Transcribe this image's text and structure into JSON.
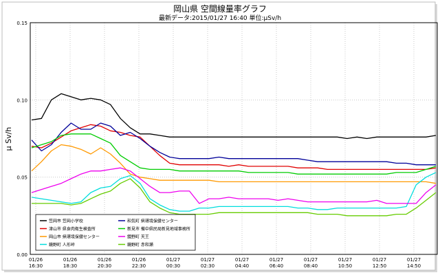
{
  "chart_data": {
    "type": "line",
    "title": "岡山県 空間線量率グラフ",
    "subtitle": "最新データ:2015/01/27 16:40 単位:μSv/h",
    "ylabel": "μ Sv/h",
    "xlabel": "",
    "ylim": [
      0,
      0.15
    ],
    "yticks": [
      "0.00",
      "0.05",
      "0.10",
      "0.15"
    ],
    "xticks": [
      {
        "date": "01/26",
        "time": "16:30"
      },
      {
        "date": "01/26",
        "time": "18:30"
      },
      {
        "date": "01/26",
        "time": "20:30"
      },
      {
        "date": "01/26",
        "time": "22:30"
      },
      {
        "date": "01/27",
        "time": "00:30"
      },
      {
        "date": "01/27",
        "time": "02:30"
      },
      {
        "date": "01/27",
        "time": "04:40"
      },
      {
        "date": "01/27",
        "time": "06:40"
      },
      {
        "date": "01/27",
        "time": "08:40"
      },
      {
        "date": "01/27",
        "time": "10:50"
      },
      {
        "date": "01/27",
        "time": "12:50"
      },
      {
        "date": "01/27",
        "time": "14:50"
      }
    ],
    "grid": true,
    "legend_position": "bottom-left",
    "series": [
      {
        "name": "笠岡市 笠岡小学校",
        "color": "#000000",
        "values": [
          0.087,
          0.088,
          0.1,
          0.104,
          0.102,
          0.1,
          0.101,
          0.1,
          0.097,
          0.088,
          0.082,
          0.078,
          0.078,
          0.077,
          0.076,
          0.076,
          0.076,
          0.076,
          0.076,
          0.076,
          0.076,
          0.076,
          0.076,
          0.076,
          0.076,
          0.076,
          0.076,
          0.076,
          0.076,
          0.076,
          0.076,
          0.076,
          0.075,
          0.076,
          0.075,
          0.076,
          0.076,
          0.076,
          0.076,
          0.076,
          0.076,
          0.077
        ]
      },
      {
        "name": "津山市 県食肉衛生検査所",
        "color": "#e00000",
        "values": [
          0.07,
          0.069,
          0.072,
          0.076,
          0.08,
          0.082,
          0.084,
          0.083,
          0.08,
          0.079,
          0.077,
          0.076,
          0.07,
          0.064,
          0.059,
          0.058,
          0.058,
          0.058,
          0.058,
          0.058,
          0.057,
          0.058,
          0.057,
          0.057,
          0.057,
          0.057,
          0.057,
          0.056,
          0.056,
          0.056,
          0.055,
          0.055,
          0.055,
          0.055,
          0.055,
          0.055,
          0.055,
          0.055,
          0.055,
          0.055,
          0.055,
          0.056
        ]
      },
      {
        "name": "岡山市 県環境保健センター",
        "color": "#ff9900",
        "values": [
          0.054,
          0.06,
          0.067,
          0.071,
          0.07,
          0.068,
          0.065,
          0.069,
          0.065,
          0.059,
          0.052,
          0.05,
          0.049,
          0.048,
          0.048,
          0.048,
          0.048,
          0.048,
          0.048,
          0.047,
          0.047,
          0.047,
          0.047,
          0.047,
          0.047,
          0.047,
          0.047,
          0.047,
          0.047,
          0.047,
          0.047,
          0.047,
          0.047,
          0.047,
          0.047,
          0.047,
          0.047,
          0.047,
          0.047,
          0.047,
          0.047,
          0.046
        ]
      },
      {
        "name": "鏡野町 人形峠",
        "color": "#00dddd",
        "values": [
          0.037,
          0.036,
          0.035,
          0.034,
          0.033,
          0.034,
          0.04,
          0.043,
          0.044,
          0.049,
          0.051,
          0.046,
          0.036,
          0.032,
          0.029,
          0.028,
          0.028,
          0.03,
          0.03,
          0.031,
          0.031,
          0.031,
          0.031,
          0.031,
          0.031,
          0.031,
          0.031,
          0.03,
          0.03,
          0.029,
          0.029,
          0.03,
          0.03,
          0.03,
          0.03,
          0.03,
          0.03,
          0.03,
          0.031,
          0.045,
          0.05,
          0.053
        ]
      },
      {
        "name": "和気町 県環境保健センター",
        "color": "#000099",
        "values": [
          0.074,
          0.067,
          0.071,
          0.079,
          0.085,
          0.081,
          0.081,
          0.085,
          0.083,
          0.077,
          0.079,
          0.075,
          0.07,
          0.066,
          0.063,
          0.062,
          0.062,
          0.062,
          0.062,
          0.063,
          0.062,
          0.062,
          0.062,
          0.062,
          0.062,
          0.062,
          0.062,
          0.062,
          0.061,
          0.06,
          0.06,
          0.06,
          0.06,
          0.06,
          0.06,
          0.06,
          0.06,
          0.059,
          0.059,
          0.058,
          0.058,
          0.058
        ]
      },
      {
        "name": "新見市 備中県民局新見地域事務所",
        "color": "#00cc00",
        "values": [
          0.069,
          0.071,
          0.073,
          0.077,
          0.078,
          0.078,
          0.078,
          0.075,
          0.072,
          0.064,
          0.06,
          0.056,
          0.055,
          0.055,
          0.055,
          0.054,
          0.054,
          0.054,
          0.054,
          0.054,
          0.054,
          0.054,
          0.053,
          0.053,
          0.053,
          0.053,
          0.053,
          0.052,
          0.052,
          0.052,
          0.052,
          0.052,
          0.052,
          0.052,
          0.052,
          0.052,
          0.052,
          0.053,
          0.053,
          0.053,
          0.055,
          0.057
        ]
      },
      {
        "name": "鏡野町 天王",
        "color": "#ee00ee",
        "values": [
          0.04,
          0.042,
          0.044,
          0.046,
          0.049,
          0.052,
          0.054,
          0.054,
          0.055,
          0.056,
          0.054,
          0.049,
          0.044,
          0.04,
          0.04,
          0.041,
          0.041,
          0.033,
          0.036,
          0.036,
          0.037,
          0.036,
          0.036,
          0.036,
          0.036,
          0.035,
          0.036,
          0.035,
          0.034,
          0.034,
          0.034,
          0.034,
          0.034,
          0.034,
          0.034,
          0.035,
          0.033,
          0.033,
          0.033,
          0.033,
          0.04,
          0.045
        ]
      },
      {
        "name": "鏡野町 赤和瀬",
        "color": "#66cc00",
        "values": [
          0.033,
          0.033,
          0.033,
          0.033,
          0.032,
          0.033,
          0.036,
          0.039,
          0.041,
          0.046,
          0.049,
          0.043,
          0.034,
          0.03,
          0.027,
          0.026,
          0.026,
          0.026,
          0.026,
          0.027,
          0.027,
          0.027,
          0.027,
          0.027,
          0.027,
          0.027,
          0.027,
          0.027,
          0.027,
          0.026,
          0.026,
          0.026,
          0.025,
          0.025,
          0.025,
          0.025,
          0.025,
          0.026,
          0.026,
          0.03,
          0.035,
          0.04
        ]
      }
    ]
  }
}
